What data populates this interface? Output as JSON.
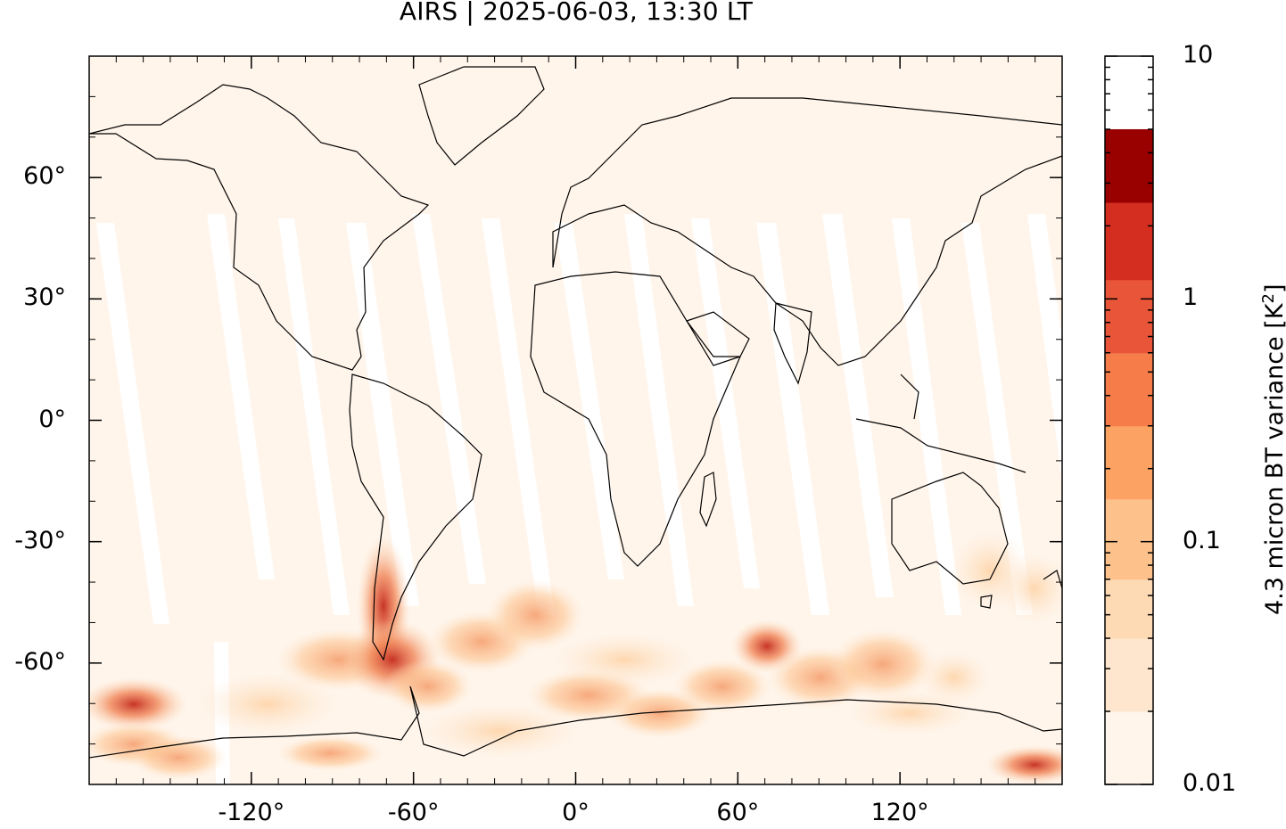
{
  "title": "AIRS | 2025-06-03, 13:30 LT",
  "map": {
    "lon_range": [
      -180,
      180
    ],
    "lat_range": [
      -90,
      90
    ],
    "y_ticks": [
      {
        "value": 60,
        "label": "60°"
      },
      {
        "value": 30,
        "label": "30°"
      },
      {
        "value": 0,
        "label": "0°"
      },
      {
        "value": -30,
        "label": "-30°"
      },
      {
        "value": -60,
        "label": "-60°"
      }
    ],
    "x_ticks": [
      {
        "value": -120,
        "label": "-120°"
      },
      {
        "value": -60,
        "label": "-60°"
      },
      {
        "value": 0,
        "label": "0°"
      },
      {
        "value": 60,
        "label": "60°"
      },
      {
        "value": 120,
        "label": "120°"
      }
    ],
    "background_color": "#fff5eb",
    "coastline_color": "#000000"
  },
  "colorbar": {
    "title_main": "4.3 micron BT variance [K",
    "title_sup": "2",
    "title_end": "]",
    "scale": "log",
    "range": [
      0.01,
      10
    ],
    "tick_labels": [
      {
        "value": 10,
        "label": "10"
      },
      {
        "value": 1,
        "label": "1"
      },
      {
        "value": 0.1,
        "label": "0.1"
      },
      {
        "value": 0.01,
        "label": "0.01"
      }
    ],
    "levels": [
      0.01,
      0.02,
      0.04,
      0.07,
      0.15,
      0.3,
      0.6,
      1.2,
      2.5,
      5,
      10
    ],
    "colors": [
      "#fff5eb",
      "#fee6ce",
      "#fdd9b4",
      "#fdc28c",
      "#fca263",
      "#f67d4a",
      "#e95538",
      "#d42e20",
      "#990000"
    ]
  }
}
